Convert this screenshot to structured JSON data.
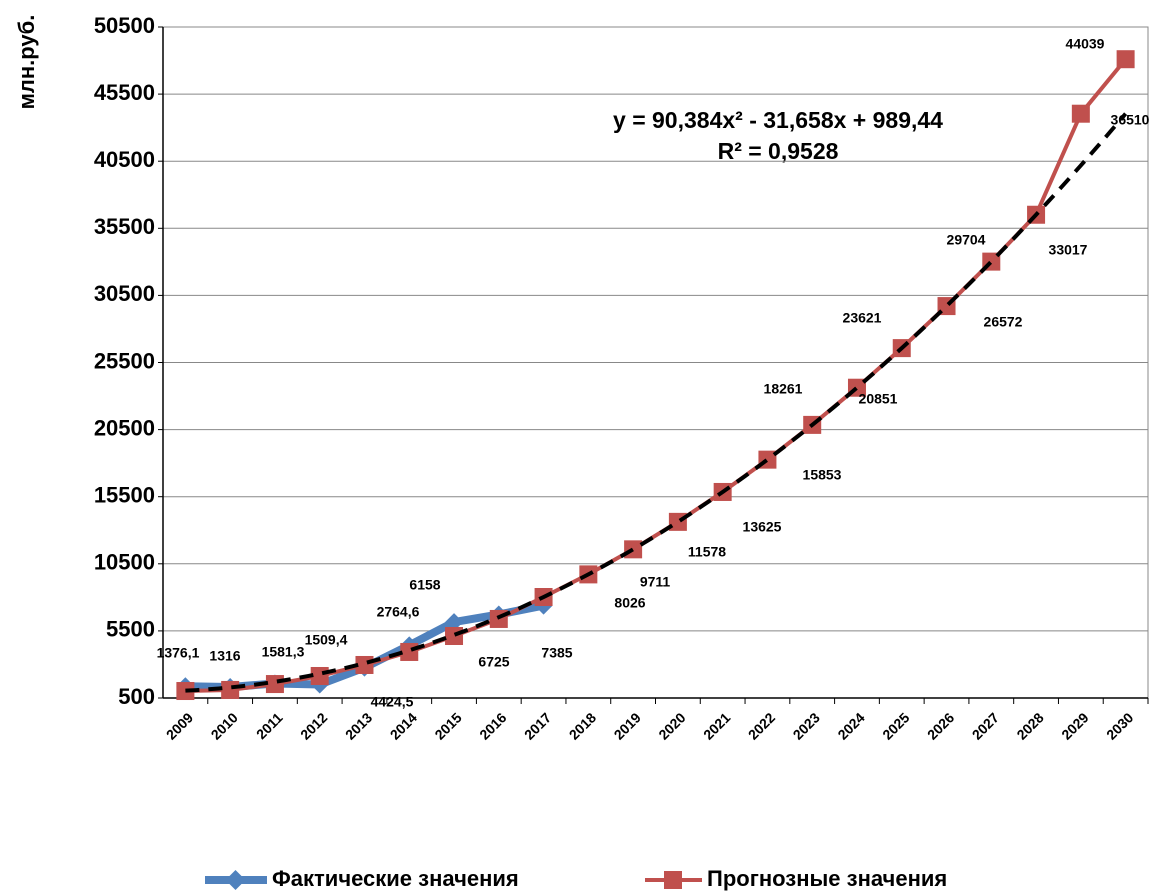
{
  "chart_data": {
    "type": "line",
    "ylabel": "млн.руб.",
    "categories": [
      "2009",
      "2010",
      "2011",
      "2012",
      "2013",
      "2014",
      "2015",
      "2016",
      "2017",
      "2018",
      "2019",
      "2020",
      "2021",
      "2022",
      "2023",
      "2024",
      "2025",
      "2026",
      "2027",
      "2028",
      "2029",
      "2030"
    ],
    "series": [
      {
        "name": "Фактические значения",
        "color": "#4f81bd",
        "marker": "diamond",
        "values": [
          1376.1,
          1316,
          1581.3,
          1509.4,
          2764.6,
          4424.5,
          6158,
          6725,
          7385,
          null,
          null,
          null,
          null,
          null,
          null,
          null,
          null,
          null,
          null,
          null,
          null,
          null
        ],
        "value_labels": [
          "1376,1",
          "1316",
          "1581,3",
          "1509,4",
          "2764,6",
          "4424,5",
          "6158",
          "6725",
          "7385",
          null,
          null,
          null,
          null,
          null,
          null,
          null,
          null,
          null,
          null,
          null,
          null,
          null
        ]
      },
      {
        "name": "Прогнозные значения",
        "color": "#c0504d",
        "marker": "square",
        "values": [
          1020,
          1100,
          1540,
          2140,
          2960,
          3930,
          5120,
          6390,
          8026,
          9711,
          11578,
          13625,
          15853,
          18261,
          20851,
          23621,
          26572,
          29704,
          33017,
          36510,
          44039,
          48100
        ],
        "value_labels": [
          null,
          null,
          null,
          null,
          null,
          null,
          null,
          null,
          "8026",
          "9711",
          "11578",
          "13625",
          "15853",
          "18261",
          "20851",
          "23621",
          "26572",
          "29704",
          "33017",
          "36510",
          "44039",
          null
        ]
      }
    ],
    "trendline": {
      "equation": "y = 90,384x² - 31,658x + 989,44",
      "r2": "R² = 0,9528",
      "coefficients": [
        90.384,
        -31.658,
        989.44
      ],
      "color": "#000000"
    },
    "ylim": [
      500,
      50500
    ],
    "yticks": [
      500,
      5500,
      10500,
      15500,
      20500,
      25500,
      30500,
      35500,
      40500,
      45500,
      50500
    ],
    "grid": true,
    "legend": "bottom"
  }
}
